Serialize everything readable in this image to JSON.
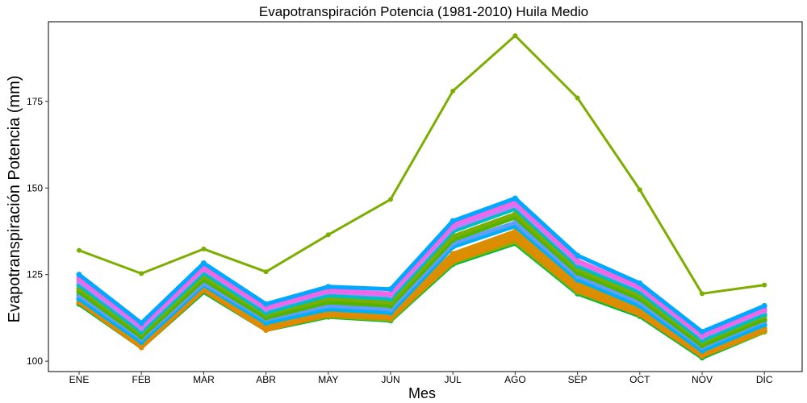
{
  "chart_data": {
    "type": "line",
    "title": "Evapotranspiración Potencia (1981-2010)  Huila Medio",
    "xlabel": "Mes",
    "ylabel": "Evapotranspiración Potencia  (mm)",
    "categories": [
      "ENE",
      "FEB",
      "MAR",
      "ABR",
      "MAY",
      "JUN",
      "JUL",
      "AGO",
      "SEP",
      "OCT",
      "NOV",
      "DIC"
    ],
    "y_ticks": [
      100,
      125,
      150,
      175
    ],
    "ylim": [
      97,
      198
    ],
    "grid": false,
    "legend": "none",
    "series": [
      {
        "color": "#7CAE00",
        "values": [
          132,
          125.3,
          132.4,
          125.8,
          136.5,
          146.7,
          178,
          194,
          176,
          149.5,
          119.5,
          122
        ]
      },
      {
        "color": "#00A9FF",
        "values": [
          125,
          111,
          128.3,
          116.5,
          121.5,
          120.8,
          140.5,
          147,
          130.5,
          122.5,
          108.5,
          116
        ]
      },
      {
        "color": "#F564E3",
        "values": [
          124,
          110.5,
          127,
          115.5,
          120.5,
          119.5,
          139.5,
          146,
          129,
          121.5,
          107.5,
          115
        ]
      },
      {
        "color": "#C77CFF",
        "values": [
          123,
          109.5,
          126.5,
          115,
          120,
          119,
          138.5,
          145,
          128.5,
          121,
          107,
          114.5
        ]
      },
      {
        "color": "#00BFC4",
        "values": [
          122,
          108.5,
          125.5,
          114,
          119,
          118,
          137.5,
          144,
          127.5,
          120,
          106,
          113.5
        ]
      },
      {
        "color": "#7CAE00",
        "values": [
          121,
          108,
          124.5,
          113.5,
          118,
          117,
          136,
          142.5,
          126.5,
          119,
          105.5,
          113
        ]
      },
      {
        "color": "#53B400",
        "values": [
          120,
          107,
          123.5,
          112.5,
          117,
          116,
          135,
          141.5,
          125.5,
          118,
          104.5,
          112
        ]
      },
      {
        "color": "#619CFF",
        "values": [
          119,
          106.5,
          122.5,
          112,
          116,
          115,
          134,
          140,
          124.5,
          117,
          104,
          111.5
        ]
      },
      {
        "color": "#00B0F6",
        "values": [
          118,
          105.5,
          122,
          111,
          115,
          114,
          133,
          139,
          123.5,
          116,
          103,
          110.5
        ]
      },
      {
        "color": "#DB8E00",
        "values": [
          119,
          106,
          122.5,
          111,
          115.5,
          114.5,
          131,
          137.5,
          122.5,
          115.5,
          103.5,
          110.5
        ]
      },
      {
        "color": "#D89000",
        "values": [
          118,
          105,
          121.5,
          110,
          114.5,
          113.5,
          130,
          136.5,
          121.5,
          114.5,
          102.5,
          109.5
        ]
      },
      {
        "color": "#E58700",
        "values": [
          117,
          104,
          120.5,
          109,
          113.5,
          112.5,
          129,
          135.5,
          120.5,
          113.5,
          101.5,
          109
        ]
      },
      {
        "color": "#A3A500",
        "values": [
          117,
          104.5,
          120.5,
          109.5,
          113,
          112,
          128.5,
          134.5,
          120,
          113.5,
          101.5,
          108.5
        ]
      },
      {
        "color": "#00BA38",
        "values": [
          116.5,
          104,
          120,
          109,
          112.8,
          111.7,
          128,
          134,
          119.5,
          113,
          101,
          108.5
        ]
      }
    ]
  }
}
